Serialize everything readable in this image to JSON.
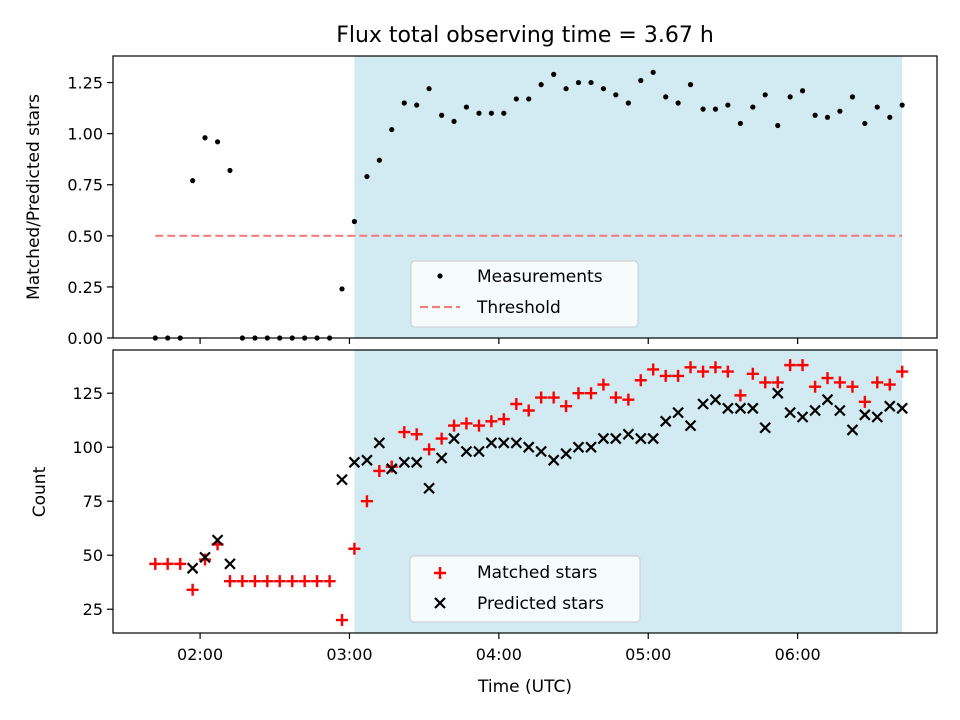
{
  "title": "Flux total observing time = 3.67 h",
  "chart_data": [
    {
      "type": "scatter",
      "panel": "top",
      "ylabel": "Matched/Predicted stars",
      "xlim": [
        1.417,
        6.933
      ],
      "ylim": [
        0,
        1.38
      ],
      "yticks": [
        "0.00",
        "0.25",
        "0.50",
        "0.75",
        "1.00",
        "1.25"
      ],
      "ytick_values": [
        0,
        0.25,
        0.5,
        0.75,
        1.0,
        1.25
      ],
      "shaded_x_range": [
        3.033,
        6.7
      ],
      "shade_color": "#add8e6",
      "threshold": {
        "name": "Threshold",
        "y": 0.5,
        "x_range": [
          1.7,
          6.7
        ],
        "color": "#f08080"
      },
      "legend": {
        "placement": "lower-center",
        "entries": [
          "Measurements",
          "Threshold"
        ]
      },
      "series": [
        {
          "name": "Measurements",
          "marker": "dot",
          "color": "#000000",
          "x": [
            1.7,
            1.783,
            1.867,
            1.95,
            2.033,
            2.117,
            2.2,
            2.283,
            2.367,
            2.45,
            2.533,
            2.617,
            2.7,
            2.783,
            2.867,
            2.95,
            3.033,
            3.117,
            3.2,
            3.283,
            3.367,
            3.45,
            3.533,
            3.617,
            3.7,
            3.783,
            3.867,
            3.95,
            4.033,
            4.117,
            4.2,
            4.283,
            4.367,
            4.45,
            4.533,
            4.617,
            4.7,
            4.783,
            4.867,
            4.95,
            5.033,
            5.117,
            5.2,
            5.283,
            5.367,
            5.45,
            5.533,
            5.617,
            5.7,
            5.783,
            5.867,
            5.95,
            6.033,
            6.117,
            6.2,
            6.283,
            6.367,
            6.45,
            6.533,
            6.617,
            6.7
          ],
          "y": [
            0,
            0,
            0,
            0.77,
            0.98,
            0.96,
            0.82,
            0,
            0,
            0,
            0,
            0,
            0,
            0,
            0,
            0.24,
            0.57,
            0.79,
            0.87,
            1.02,
            1.15,
            1.14,
            1.22,
            1.09,
            1.06,
            1.13,
            1.1,
            1.1,
            1.1,
            1.17,
            1.17,
            1.24,
            1.29,
            1.22,
            1.25,
            1.25,
            1.22,
            1.19,
            1.15,
            1.26,
            1.3,
            1.18,
            1.15,
            1.24,
            1.12,
            1.12,
            1.14,
            1.05,
            1.13,
            1.19,
            1.04,
            1.18,
            1.21,
            1.09,
            1.08,
            1.11,
            1.18,
            1.05,
            1.13,
            1.08,
            1.14
          ]
        }
      ]
    },
    {
      "type": "scatter",
      "panel": "bottom",
      "xlabel": "Time (UTC)",
      "ylabel": "Count",
      "xlim": [
        1.417,
        6.933
      ],
      "ylim": [
        14,
        145
      ],
      "yticks": [
        "25",
        "50",
        "75",
        "100",
        "125"
      ],
      "ytick_values": [
        25,
        50,
        75,
        100,
        125
      ],
      "xticks": [
        "02:00",
        "03:00",
        "04:00",
        "05:00",
        "06:00"
      ],
      "xtick_values": [
        2,
        3,
        4,
        5,
        6
      ],
      "shaded_x_range": [
        3.033,
        6.7
      ],
      "shade_color": "#add8e6",
      "legend": {
        "placement": "lower-center",
        "entries": [
          "Matched stars",
          "Predicted stars"
        ]
      },
      "series": [
        {
          "name": "Matched stars",
          "marker": "plus",
          "color": "#ff0000",
          "x": [
            1.7,
            1.783,
            1.867,
            1.95,
            2.033,
            2.117,
            2.2,
            2.283,
            2.367,
            2.45,
            2.533,
            2.617,
            2.7,
            2.783,
            2.867,
            2.95,
            3.033,
            3.117,
            3.2,
            3.283,
            3.367,
            3.45,
            3.533,
            3.617,
            3.7,
            3.783,
            3.867,
            3.95,
            4.033,
            4.117,
            4.2,
            4.283,
            4.367,
            4.45,
            4.533,
            4.617,
            4.7,
            4.783,
            4.867,
            4.95,
            5.033,
            5.117,
            5.2,
            5.283,
            5.367,
            5.45,
            5.533,
            5.617,
            5.7,
            5.783,
            5.867,
            5.95,
            6.033,
            6.117,
            6.2,
            6.283,
            6.367,
            6.45,
            6.533,
            6.617,
            6.7
          ],
          "y": [
            46,
            46,
            46,
            34,
            48,
            55,
            38,
            38,
            38,
            38,
            38,
            38,
            38,
            38,
            38,
            20,
            53,
            75,
            89,
            91,
            107,
            106,
            99,
            104,
            110,
            111,
            110,
            112,
            113,
            120,
            117,
            123,
            123,
            119,
            125,
            125,
            129,
            123,
            122,
            131,
            136,
            133,
            133,
            137,
            135,
            137,
            135,
            124,
            134,
            130,
            130,
            138,
            138,
            128,
            132,
            130,
            128,
            121,
            130,
            129,
            135
          ]
        },
        {
          "name": "Predicted stars",
          "marker": "x",
          "color": "#000000",
          "x": [
            1.95,
            2.033,
            2.117,
            2.2,
            2.95,
            3.033,
            3.117,
            3.2,
            3.283,
            3.367,
            3.45,
            3.533,
            3.617,
            3.7,
            3.783,
            3.867,
            3.95,
            4.033,
            4.117,
            4.2,
            4.283,
            4.367,
            4.45,
            4.533,
            4.617,
            4.7,
            4.783,
            4.867,
            4.95,
            5.033,
            5.117,
            5.2,
            5.283,
            5.367,
            5.45,
            5.533,
            5.617,
            5.7,
            5.783,
            5.867,
            5.95,
            6.033,
            6.117,
            6.2,
            6.283,
            6.367,
            6.45,
            6.533,
            6.617,
            6.7
          ],
          "y": [
            44,
            49,
            57,
            46,
            85,
            93,
            94,
            102,
            90,
            93,
            93,
            81,
            95,
            104,
            98,
            98,
            102,
            102,
            102,
            100,
            98,
            94,
            97,
            100,
            100,
            104,
            104,
            106,
            104,
            104,
            112,
            116,
            110,
            120,
            122,
            118,
            118,
            118,
            109,
            125,
            116,
            114,
            117,
            122,
            117,
            108,
            115,
            114,
            119,
            118
          ]
        }
      ]
    }
  ]
}
